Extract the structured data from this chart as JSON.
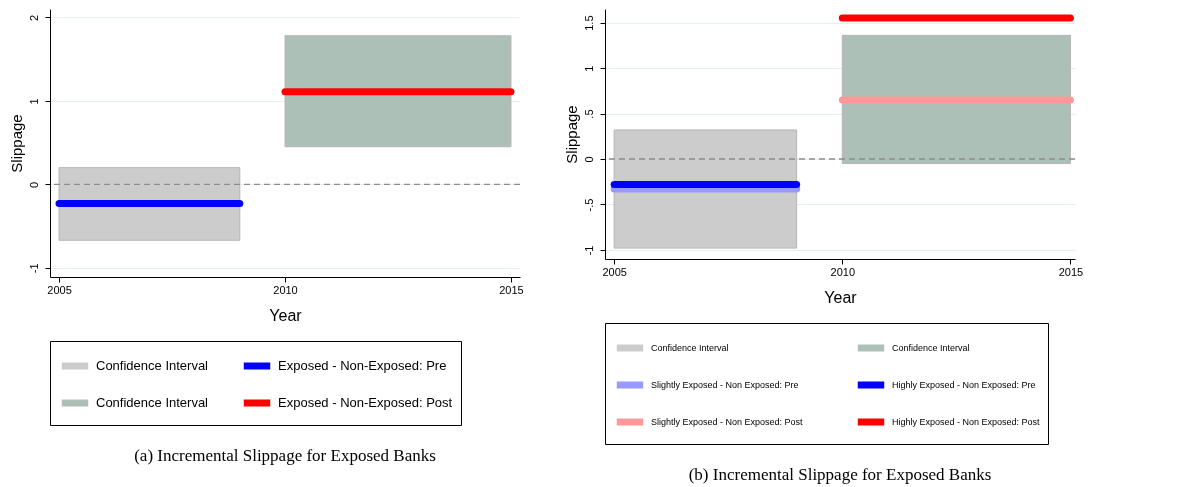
{
  "chart_data": [
    {
      "type": "line",
      "title": "(a) Incremental Slippage for Exposed Banks",
      "xlabel": "Year",
      "ylabel": "Slippage",
      "xlim": [
        2004.8,
        2015.2
      ],
      "xticks": [
        2005,
        2010,
        2015
      ],
      "ylim": [
        -1.11,
        2.1
      ],
      "yticks": [
        -1,
        0,
        1,
        2
      ],
      "grid": "y",
      "legend": "bottom",
      "ref_lines": [
        {
          "axis": "y",
          "value": 0,
          "color": "#8c8c8c",
          "line_style": "dashed"
        }
      ],
      "series": [
        {
          "name": "Confidence Interval",
          "type": "bar",
          "color": "#cccccc",
          "x": [
            2007
          ],
          "base": [
            -0.67
          ],
          "values": [
            0.87
          ]
        },
        {
          "name": "Exposed - Non-Exposed: Pre",
          "color": "#0000ff",
          "x": [
            2005,
            2009
          ],
          "values": [
            -0.23,
            -0.23
          ]
        },
        {
          "name": "Confidence Interval",
          "type": "bar",
          "color": "#adc0b8",
          "x": [
            2012.5
          ],
          "base": [
            0.45
          ],
          "values": [
            1.33
          ]
        },
        {
          "name": "Exposed - Non-Exposed: Post",
          "color": "#ff0000",
          "x": [
            2010,
            2015
          ],
          "values": [
            1.11,
            1.11
          ]
        }
      ]
    },
    {
      "type": "line",
      "title": "(b) Incremental Slippage for Exposed Banks",
      "xlabel": "Year",
      "ylabel": "Slippage",
      "xlim": [
        2004.8,
        2015.1
      ],
      "xticks": [
        2005,
        2010,
        2015
      ],
      "ylim": [
        -1.1,
        1.65
      ],
      "yticks": [
        -1,
        {
          "value": -0.5,
          "label": "-.5"
        },
        0,
        {
          "value": 0.5,
          "label": ".5"
        },
        1,
        1.5
      ],
      "grid": "y",
      "legend": "bottom",
      "ref_lines": [
        {
          "axis": "y",
          "value": 0,
          "color": "#8c8c8c",
          "line_style": "dashed"
        }
      ],
      "series": [
        {
          "name": "Confidence Interval",
          "type": "bar",
          "color": "#cccccc",
          "x": [
            2007
          ],
          "base": [
            -0.98
          ],
          "values": [
            1.3
          ]
        },
        {
          "name": "Confidence Interval",
          "type": "bar",
          "color": "#adc0b8",
          "x": [
            2012.5
          ],
          "base": [
            -0.05
          ],
          "values": [
            1.41
          ]
        },
        {
          "name": "Slightly Exposed - Non Exposed: Pre",
          "color": "#9999ff",
          "x": [
            2005,
            2009
          ],
          "values": [
            -0.33,
            -0.33
          ]
        },
        {
          "name": "Highly Exposed - Non Exposed: Pre",
          "color": "#0000ff",
          "x": [
            2005,
            2009
          ],
          "values": [
            -0.28,
            -0.28
          ]
        },
        {
          "name": "Slightly Exposed - Non Exposed: Post",
          "color": "#ff9999",
          "x": [
            2010,
            2015
          ],
          "values": [
            0.65,
            0.65
          ]
        },
        {
          "name": "Highly Exposed - Non Exposed: Post",
          "color": "#ff0000",
          "x": [
            2010,
            2015
          ],
          "values": [
            1.55,
            1.55
          ]
        }
      ]
    }
  ]
}
